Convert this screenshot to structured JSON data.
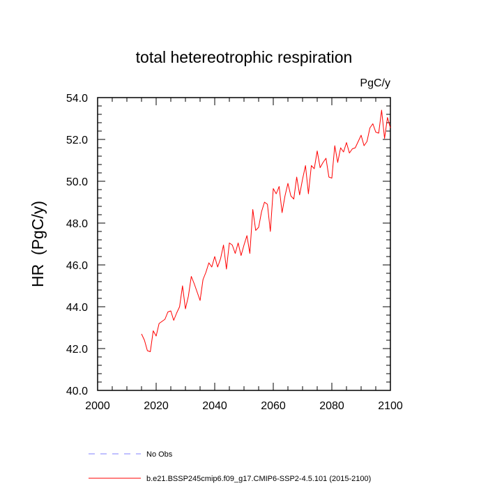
{
  "chart_data": {
    "type": "line",
    "title": "total hetereotrophic respiration",
    "units": "PgC/y",
    "ylabel": "HR  (PgC/y)",
    "xlabel": "",
    "xlim": [
      2000,
      2100
    ],
    "ylim": [
      40.0,
      54.0
    ],
    "x_ticks": [
      "2000",
      "2020",
      "2040",
      "2060",
      "2080",
      "2100"
    ],
    "y_ticks": [
      "40.0",
      "42.0",
      "44.0",
      "46.0",
      "48.0",
      "50.0",
      "52.0",
      "54.0"
    ],
    "x_tick_values": [
      2000,
      2020,
      2040,
      2060,
      2080,
      2100
    ],
    "y_tick_values": [
      40,
      42,
      44,
      46,
      48,
      50,
      52,
      54
    ],
    "grid": false,
    "legend": {
      "placement": "bottom-left",
      "entries": [
        {
          "label": "No Obs",
          "color": "#8080ff",
          "style": "dashed"
        },
        {
          "label": "b.e21.BSSP245cmip6.f09_g17.CMIP6-SSP2-4.5.101 (2015-2100)",
          "color": "#ff0000",
          "style": "solid"
        }
      ]
    },
    "series": [
      {
        "name": "b.e21.BSSP245cmip6.f09_g17.CMIP6-SSP2-4.5.101 (2015-2100)",
        "color": "#ff0000",
        "x": [
          2015,
          2016,
          2017,
          2018,
          2019,
          2020,
          2021,
          2022,
          2023,
          2024,
          2025,
          2026,
          2027,
          2028,
          2029,
          2030,
          2031,
          2032,
          2033,
          2034,
          2035,
          2036,
          2037,
          2038,
          2039,
          2040,
          2041,
          2042,
          2043,
          2044,
          2045,
          2046,
          2047,
          2048,
          2049,
          2050,
          2051,
          2052,
          2053,
          2054,
          2055,
          2056,
          2057,
          2058,
          2059,
          2060,
          2061,
          2062,
          2063,
          2064,
          2065,
          2066,
          2067,
          2068,
          2069,
          2070,
          2071,
          2072,
          2073,
          2074,
          2075,
          2076,
          2077,
          2078,
          2079,
          2080,
          2081,
          2082,
          2083,
          2084,
          2085,
          2086,
          2087,
          2088,
          2089,
          2090,
          2091,
          2092,
          2093,
          2094,
          2095,
          2096,
          2097,
          2098,
          2099,
          2100
        ],
        "values": [
          42.7,
          42.4,
          41.9,
          41.85,
          42.85,
          42.6,
          43.2,
          43.3,
          43.4,
          43.75,
          43.8,
          43.35,
          43.7,
          44.0,
          45.0,
          43.9,
          44.5,
          45.45,
          45.1,
          44.7,
          44.3,
          45.3,
          45.65,
          46.1,
          45.9,
          46.4,
          45.9,
          46.3,
          46.95,
          45.8,
          47.05,
          46.95,
          46.55,
          47.05,
          46.45,
          46.95,
          47.4,
          46.55,
          48.65,
          47.65,
          47.8,
          48.55,
          49.0,
          48.9,
          47.6,
          49.65,
          49.4,
          49.75,
          48.5,
          49.3,
          49.9,
          49.3,
          49.15,
          50.2,
          49.35,
          50.1,
          50.75,
          49.4,
          50.75,
          50.6,
          51.45,
          50.65,
          50.9,
          51.1,
          50.2,
          50.15,
          51.7,
          50.9,
          51.6,
          51.4,
          51.85,
          51.35,
          51.55,
          51.6,
          51.9,
          52.2,
          51.7,
          51.9,
          52.55,
          52.75,
          52.35,
          52.3,
          53.4,
          52.05,
          53.05,
          52.55
        ]
      }
    ]
  }
}
